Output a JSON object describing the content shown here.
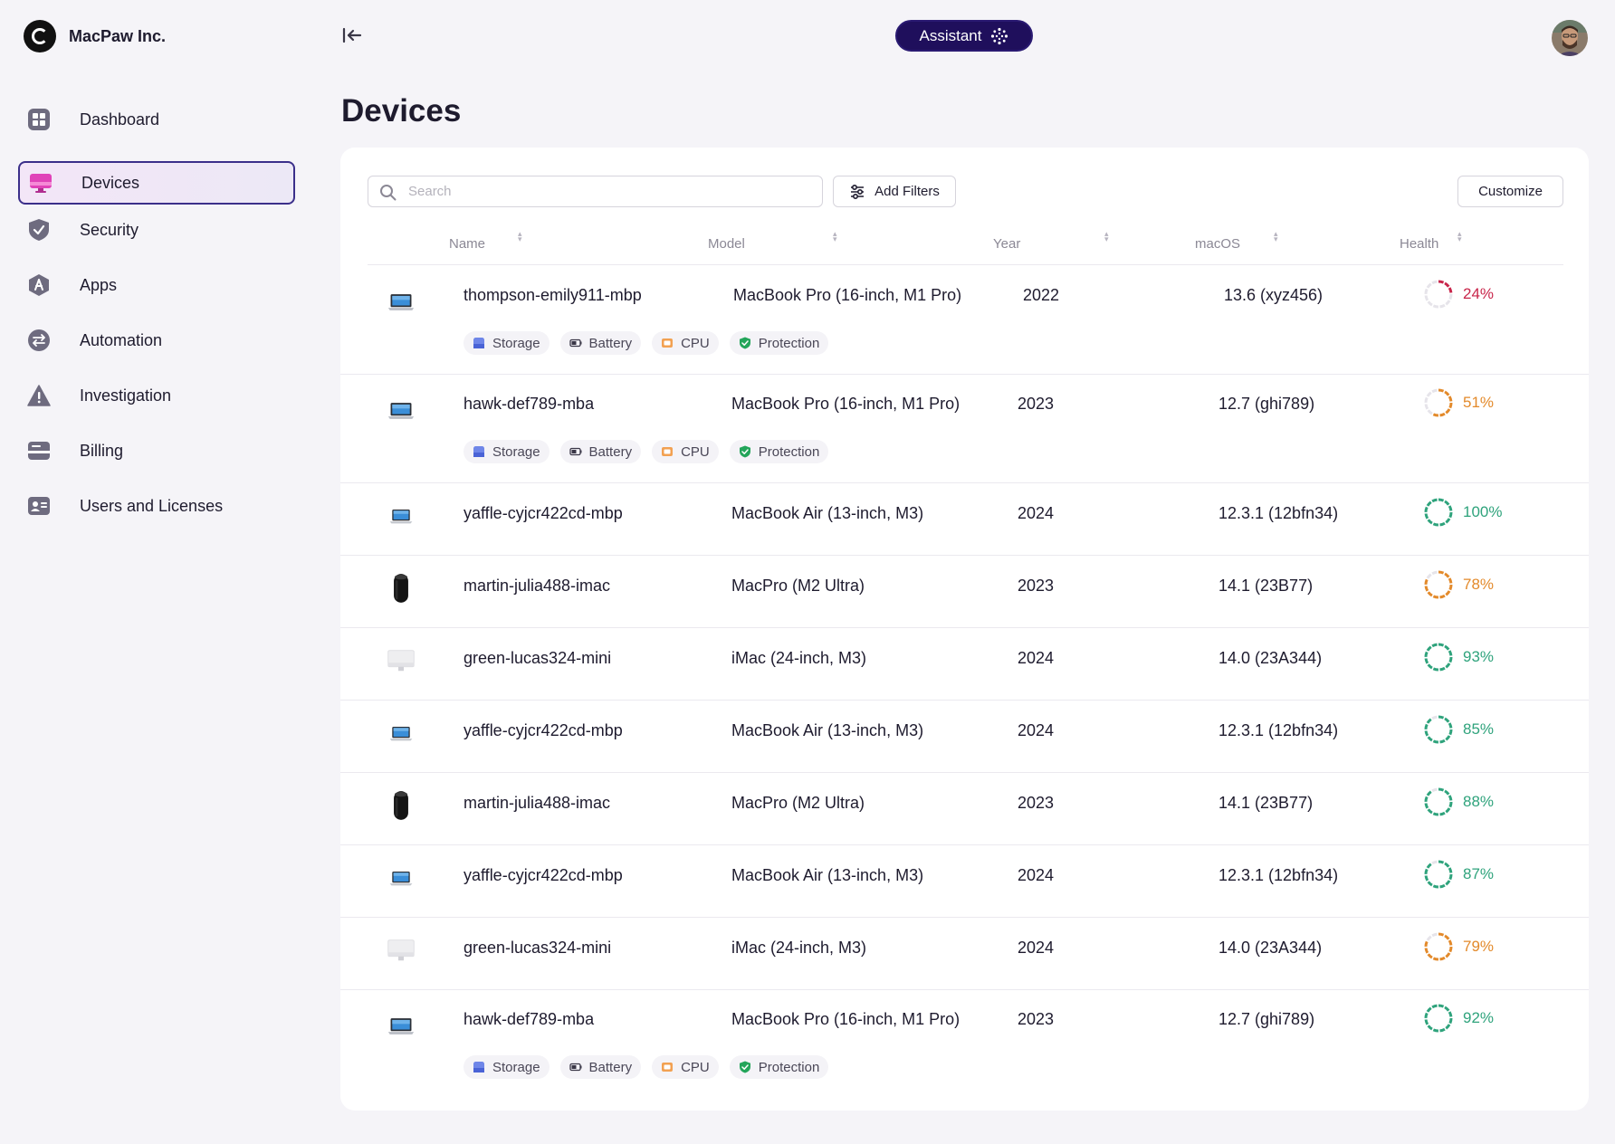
{
  "brand": {
    "name": "MacPaw Inc."
  },
  "header": {
    "assistant_label": "Assistant"
  },
  "sidebar": {
    "items": [
      {
        "label": "Dashboard",
        "icon": "dashboard-icon"
      },
      {
        "label": "Devices",
        "icon": "devices-icon",
        "active": true
      },
      {
        "label": "Security",
        "icon": "shield-icon"
      },
      {
        "label": "Apps",
        "icon": "apps-icon"
      },
      {
        "label": "Automation",
        "icon": "automation-icon"
      },
      {
        "label": "Investigation",
        "icon": "warning-icon"
      },
      {
        "label": "Billing",
        "icon": "billing-icon"
      },
      {
        "label": "Users and Licenses",
        "icon": "users-icon"
      }
    ]
  },
  "main": {
    "title": "Devices",
    "search_placeholder": "Search",
    "add_filters_label": "Add Filters",
    "customize_label": "Customize",
    "columns": {
      "name": "Name",
      "model": "Model",
      "year": "Year",
      "macos": "macOS",
      "health": "Health"
    },
    "tags": {
      "storage": "Storage",
      "battery": "Battery",
      "cpu": "CPU",
      "protection": "Protection"
    },
    "rows": [
      {
        "type": "macbook-pro",
        "name": "thompson-emily911-mbp",
        "model": "MacBook Pro (16-inch, M1 Pro)",
        "year": "2022",
        "macos": "13.6 (xyz456)",
        "health": "24%",
        "health_value": 24,
        "status": "critical",
        "tags": true
      },
      {
        "type": "macbook-pro",
        "name": "hawk-def789-mba",
        "model": "MacBook Pro (16-inch, M1 Pro)",
        "year": "2023",
        "macos": "12.7 (ghi789)",
        "health": "51%",
        "health_value": 51,
        "status": "warning",
        "tags": true
      },
      {
        "type": "macbook-air",
        "name": "yaffle-cyjcr422cd-mbp",
        "model": "MacBook Air (13-inch, M3)",
        "year": "2024",
        "macos": "12.3.1 (12bfn34)",
        "health": "100%",
        "health_value": 100,
        "status": "good",
        "tags": false
      },
      {
        "type": "mac-pro",
        "name": "martin-julia488-imac",
        "model": "MacPro (M2 Ultra)",
        "year": "2023",
        "macos": "14.1 (23B77)",
        "health": "78%",
        "health_value": 78,
        "status": "warning",
        "tags": false
      },
      {
        "type": "imac",
        "name": "green-lucas324-mini",
        "model": "iMac (24-inch, M3)",
        "year": "2024",
        "macos": "14.0 (23A344)",
        "health": "93%",
        "health_value": 93,
        "status": "good",
        "tags": false
      },
      {
        "type": "macbook-air",
        "name": "yaffle-cyjcr422cd-mbp",
        "model": "MacBook Air (13-inch, M3)",
        "year": "2024",
        "macos": "12.3.1 (12bfn34)",
        "health": "85%",
        "health_value": 85,
        "status": "good",
        "tags": false
      },
      {
        "type": "mac-pro",
        "name": "martin-julia488-imac",
        "model": "MacPro (M2 Ultra)",
        "year": "2023",
        "macos": "14.1 (23B77)",
        "health": "88%",
        "health_value": 88,
        "status": "good",
        "tags": false
      },
      {
        "type": "macbook-air",
        "name": "yaffle-cyjcr422cd-mbp",
        "model": "MacBook Air (13-inch, M3)",
        "year": "2024",
        "macos": "12.3.1 (12bfn34)",
        "health": "87%",
        "health_value": 87,
        "status": "good",
        "tags": false
      },
      {
        "type": "imac",
        "name": "green-lucas324-mini",
        "model": "iMac (24-inch, M3)",
        "year": "2024",
        "macos": "14.0 (23A344)",
        "health": "79%",
        "health_value": 79,
        "status": "warning",
        "tags": false
      },
      {
        "type": "macbook-pro",
        "name": "hawk-def789-mba",
        "model": "MacBook Pro (16-inch, M1 Pro)",
        "year": "2023",
        "macos": "12.7 (ghi789)",
        "health": "92%",
        "health_value": 92,
        "status": "good",
        "tags": true
      }
    ]
  },
  "colors": {
    "critical": "#c8254a",
    "warning": "#e38a2b",
    "good": "#2fa37c",
    "accent": "#1f0f5c"
  }
}
